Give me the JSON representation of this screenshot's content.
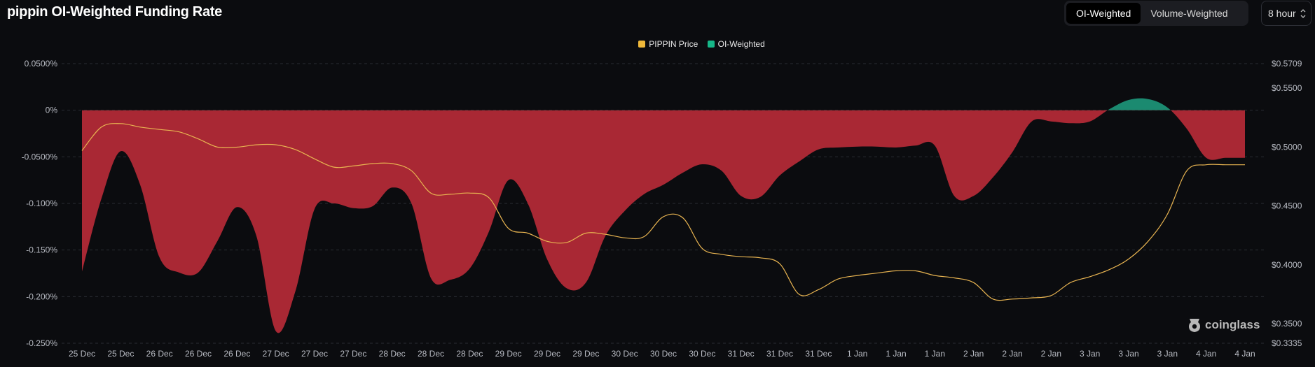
{
  "header": {
    "title": "pippin OI-Weighted Funding Rate"
  },
  "toggle": {
    "options": [
      "OI-Weighted",
      "Volume-Weighted"
    ],
    "active": "OI-Weighted"
  },
  "interval": {
    "value": "8 hour",
    "chevron": "⌃⌄"
  },
  "brand": {
    "name": "coinglass",
    "icon": "coinglass-logo-icon"
  },
  "colors": {
    "background": "#0b0c0f",
    "negative_fill": "#a92834",
    "positive_fill": "#1b8a70",
    "price_line": "#e8b451",
    "grid": "#2a2c33",
    "axis_text": "#b9bcc4"
  },
  "chart_data": {
    "type": "area",
    "title": "pippin OI-Weighted Funding Rate",
    "legend": [
      "PIPPIN Price",
      "OI-Weighted"
    ],
    "legend_colors": [
      "#f0b93a",
      "#16b788"
    ],
    "categories": [
      "25 Dec",
      "25 Dec",
      "26 Dec",
      "26 Dec",
      "26 Dec",
      "27 Dec",
      "27 Dec",
      "27 Dec",
      "28 Dec",
      "28 Dec",
      "28 Dec",
      "29 Dec",
      "29 Dec",
      "29 Dec",
      "30 Dec",
      "30 Dec",
      "30 Dec",
      "31 Dec",
      "31 Dec",
      "31 Dec",
      "1 Jan",
      "1 Jan",
      "1 Jan",
      "2 Jan",
      "2 Jan",
      "2 Jan",
      "3 Jan",
      "3 Jan",
      "3 Jan",
      "4 Jan",
      "4 Jan"
    ],
    "y_left": {
      "ticks": [
        0.05,
        0,
        -0.05,
        -0.1,
        -0.15,
        -0.2,
        -0.25
      ],
      "tick_labels": [
        "0.0500%",
        "0%",
        "-0.0500%",
        "-0.100%",
        "-0.150%",
        "-0.200%",
        "-0.250%"
      ],
      "range": [
        -0.25,
        0.05
      ]
    },
    "y_right": {
      "tick_values": [
        0.5709,
        0.55,
        0.5,
        0.45,
        0.4,
        0.35,
        0.3335
      ],
      "tick_labels": [
        "$0.5709",
        "$0.5500",
        "$0.5000",
        "$0.4500",
        "$0.4000",
        "$0.3500",
        "$0.3335"
      ],
      "range": [
        0.3335,
        0.5709
      ]
    },
    "series": [
      {
        "name": "OI-Weighted",
        "axis": "left",
        "unit": "%",
        "x": [
          0,
          0.5,
          1,
          1.5,
          2,
          2.5,
          3,
          3.5,
          4,
          4.5,
          5,
          5.5,
          6,
          6.5,
          7,
          7.5,
          8,
          8.5,
          9,
          9.5,
          10,
          10.5,
          11,
          11.5,
          12,
          12.5,
          13,
          13.5,
          14,
          14.5,
          15,
          15.5,
          16,
          16.5,
          17,
          17.5,
          18,
          18.5,
          19,
          19.5,
          20,
          20.5,
          21,
          21.5,
          22,
          22.5,
          23,
          23.5,
          24,
          24.5,
          25,
          25.5,
          26,
          26.5,
          27,
          27.5,
          28,
          28.5,
          29,
          29.5,
          30
        ],
        "values": [
          -0.173,
          -0.095,
          -0.044,
          -0.08,
          -0.158,
          -0.174,
          -0.174,
          -0.14,
          -0.104,
          -0.135,
          -0.237,
          -0.195,
          -0.106,
          -0.1,
          -0.105,
          -0.103,
          -0.083,
          -0.1,
          -0.18,
          -0.182,
          -0.17,
          -0.13,
          -0.075,
          -0.1,
          -0.16,
          -0.191,
          -0.185,
          -0.135,
          -0.108,
          -0.09,
          -0.08,
          -0.067,
          -0.058,
          -0.065,
          -0.092,
          -0.093,
          -0.07,
          -0.055,
          -0.042,
          -0.04,
          -0.039,
          -0.039,
          -0.04,
          -0.038,
          -0.038,
          -0.092,
          -0.092,
          -0.072,
          -0.045,
          -0.012,
          -0.012,
          -0.014,
          -0.012,
          0.001,
          0.011,
          0.012,
          0.003,
          -0.02,
          -0.051,
          -0.051,
          -0.051
        ]
      },
      {
        "name": "PIPPIN Price",
        "axis": "right",
        "unit": "$",
        "x": [
          0,
          0.5,
          1,
          1.5,
          2,
          2.5,
          3,
          3.5,
          4,
          4.5,
          5,
          5.5,
          6,
          6.5,
          7,
          7.5,
          8,
          8.5,
          9,
          9.5,
          10,
          10.5,
          11,
          11.5,
          12,
          12.5,
          13,
          13.5,
          14,
          14.5,
          15,
          15.5,
          16,
          16.5,
          17,
          17.5,
          18,
          18.5,
          19,
          19.5,
          20,
          20.5,
          21,
          21.5,
          22,
          22.5,
          23,
          23.5,
          24,
          24.5,
          25,
          25.5,
          26,
          26.5,
          27,
          27.5,
          28,
          28.5,
          29,
          29.5,
          30
        ],
        "values": [
          0.497,
          0.517,
          0.52,
          0.517,
          0.515,
          0.513,
          0.507,
          0.5,
          0.5,
          0.502,
          0.502,
          0.498,
          0.49,
          0.483,
          0.484,
          0.486,
          0.486,
          0.48,
          0.461,
          0.46,
          0.461,
          0.457,
          0.431,
          0.427,
          0.42,
          0.419,
          0.427,
          0.426,
          0.423,
          0.424,
          0.441,
          0.44,
          0.414,
          0.409,
          0.407,
          0.406,
          0.401,
          0.375,
          0.379,
          0.388,
          0.391,
          0.393,
          0.395,
          0.395,
          0.391,
          0.389,
          0.385,
          0.371,
          0.371,
          0.372,
          0.374,
          0.385,
          0.39,
          0.396,
          0.405,
          0.42,
          0.443,
          0.48,
          0.485,
          0.485,
          0.485
        ]
      }
    ],
    "grid": true,
    "legend_position": "top-center"
  }
}
